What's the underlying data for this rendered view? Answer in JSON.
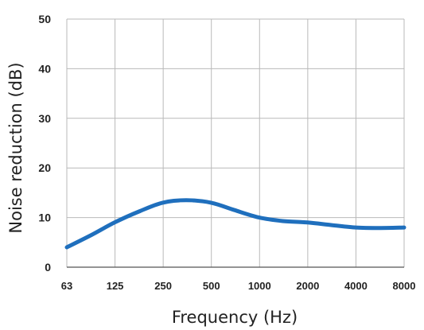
{
  "chart_data": {
    "type": "line",
    "title": "",
    "xlabel": "Frequency (Hz)",
    "ylabel": "Noise reduction (dB)",
    "x_scale": "log2",
    "x_ticks": [
      "63",
      "125",
      "250",
      "500",
      "1000",
      "2000",
      "4000",
      "8000"
    ],
    "y_ticks": [
      "0",
      "10",
      "20",
      "30",
      "40",
      "50"
    ],
    "ylim": [
      0,
      50
    ],
    "grid": true,
    "legend": "none",
    "series": [
      {
        "color": "#1f6fbd",
        "points": [
          {
            "x": 63,
            "y": 4
          },
          {
            "x": 90,
            "y": 6.5
          },
          {
            "x": 125,
            "y": 9
          },
          {
            "x": 180,
            "y": 11.3
          },
          {
            "x": 250,
            "y": 13
          },
          {
            "x": 350,
            "y": 13.5
          },
          {
            "x": 500,
            "y": 13
          },
          {
            "x": 700,
            "y": 11.5
          },
          {
            "x": 1000,
            "y": 10
          },
          {
            "x": 1400,
            "y": 9.3
          },
          {
            "x": 2000,
            "y": 9
          },
          {
            "x": 2800,
            "y": 8.5
          },
          {
            "x": 4000,
            "y": 8
          },
          {
            "x": 5600,
            "y": 7.9
          },
          {
            "x": 8000,
            "y": 8
          }
        ]
      }
    ]
  },
  "colors": {
    "grid": "#b9b9b9",
    "axis": "#555555",
    "line": "#1f6fbd"
  }
}
